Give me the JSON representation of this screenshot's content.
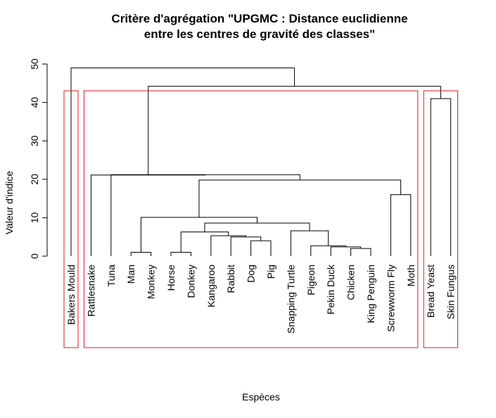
{
  "chart_data": {
    "type": "dendrogram",
    "title_line1": "Critère d'agrégation \"UPGMC : Distance euclidienne",
    "title_line2": "entre les centres de gravité des classes\"",
    "xlabel": "Espèces",
    "ylabel": "Valeur d'indice",
    "ylim": [
      0,
      50
    ],
    "yticks": [
      0,
      10,
      20,
      30,
      40,
      50
    ],
    "leaves": [
      "Bakers Mould",
      "Rattlesnake",
      "Tuna",
      "Man",
      "Monkey",
      "Horse",
      "Donkey",
      "Kangaroo",
      "Rabbit",
      "Dog",
      "Pig",
      "Snapping Turtle",
      "Pigeon",
      "Pekin Duck",
      "Chicken",
      "King Penguin",
      "Screwworm Fly",
      "Moth",
      "Bread Yeast",
      "Skin Fungus"
    ],
    "merges": [
      {
        "left": 3,
        "right": 4,
        "height": 1.0
      },
      {
        "left": 5,
        "right": 6,
        "height": 1.0
      },
      {
        "left": 9,
        "right": 10,
        "height": 4.0
      },
      {
        "left": 8,
        "right": -3,
        "height": 5.0
      },
      {
        "left": 7,
        "right": -4,
        "height": 5.3
      },
      {
        "left": -2,
        "right": -5,
        "height": 6.3
      },
      {
        "left": 14,
        "right": 15,
        "height": 2.0
      },
      {
        "left": 13,
        "right": -7,
        "height": 2.4
      },
      {
        "left": 12,
        "right": -8,
        "height": 2.7
      },
      {
        "left": 11,
        "right": -9,
        "height": 6.6
      },
      {
        "left": -6,
        "right": -10,
        "height": 8.6
      },
      {
        "left": -1,
        "right": -11,
        "height": 10.1
      },
      {
        "left": 16,
        "right": 17,
        "height": 16.0
      },
      {
        "left": -12,
        "right": -13,
        "height": 19.8
      },
      {
        "left": 2,
        "right": -14,
        "height": 21.2
      },
      {
        "left": 1,
        "right": -15,
        "height": 21.1
      },
      {
        "left": 18,
        "right": 19,
        "height": 41.0
      },
      {
        "left": -16,
        "right": -17,
        "height": 44.2
      },
      {
        "left": 0,
        "right": -18,
        "height": 49.0
      }
    ],
    "clusters": [
      {
        "first": 0,
        "last": 0
      },
      {
        "first": 1,
        "last": 17
      },
      {
        "first": 18,
        "last": 19
      }
    ],
    "colors": {
      "tree": "#000000",
      "cluster_box": "#e0191c"
    }
  }
}
